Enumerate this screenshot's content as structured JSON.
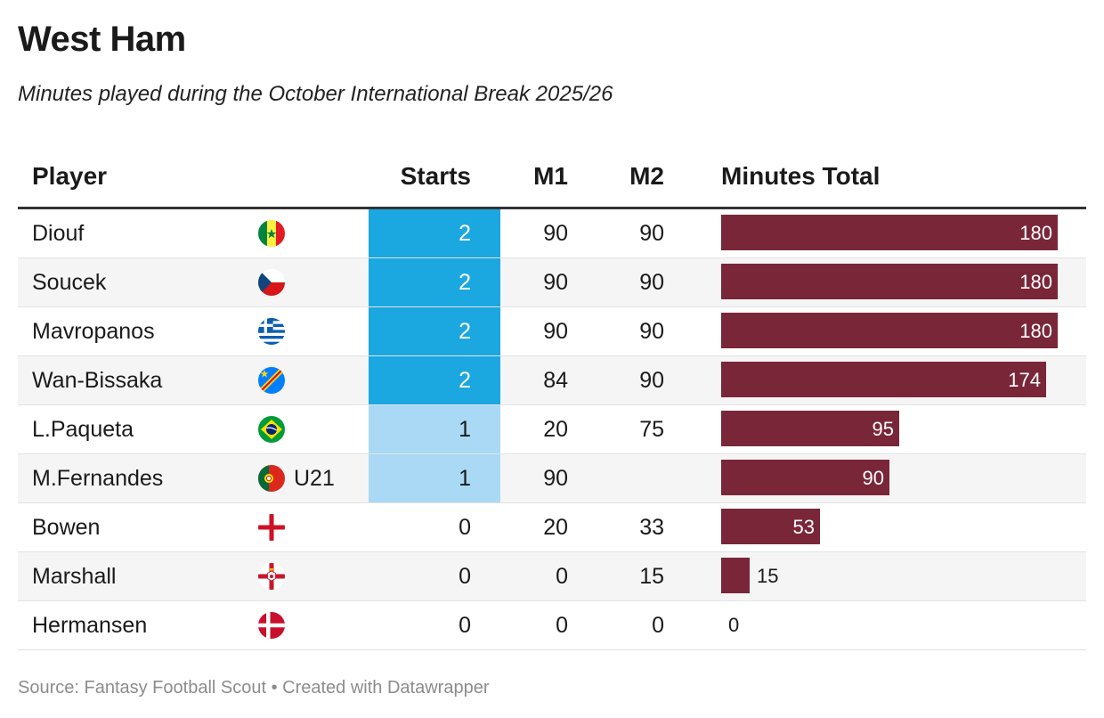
{
  "title": "West Ham",
  "subtitle": "Minutes played during the October International Break 2025/26",
  "columns": {
    "player": "Player",
    "starts": "Starts",
    "m1": "M1",
    "m2": "M2",
    "total": "Minutes Total"
  },
  "source": "Source: Fantasy Football Scout • Created with Datawrapper",
  "colors": {
    "starts_2": "#1ba7e0",
    "starts_1": "#a9d9f4",
    "bar": "#7a2639"
  },
  "chart_data": {
    "type": "table",
    "title": "West Ham",
    "subtitle": "Minutes played during the October International Break 2025/26",
    "bar_max": 180,
    "rows": [
      {
        "player": "Diouf",
        "flag": "senegal-flag-icon",
        "note": "",
        "starts": "2",
        "m1": "90",
        "m2": "90",
        "total": 180,
        "total_label": "180"
      },
      {
        "player": "Soucek",
        "flag": "czech-flag-icon",
        "note": "",
        "starts": "2",
        "m1": "90",
        "m2": "90",
        "total": 180,
        "total_label": "180"
      },
      {
        "player": "Mavropanos",
        "flag": "greece-flag-icon",
        "note": "",
        "starts": "2",
        "m1": "90",
        "m2": "90",
        "total": 180,
        "total_label": "180"
      },
      {
        "player": "Wan-Bissaka",
        "flag": "dr-congo-flag-icon",
        "note": "",
        "starts": "2",
        "m1": "84",
        "m2": "90",
        "total": 174,
        "total_label": "174"
      },
      {
        "player": "L.Paqueta",
        "flag": "brazil-flag-icon",
        "note": "",
        "starts": "1",
        "m1": "20",
        "m2": "75",
        "total": 95,
        "total_label": "95"
      },
      {
        "player": "M.Fernandes",
        "flag": "portugal-flag-icon",
        "note": "U21",
        "starts": "1",
        "m1": "90",
        "m2": "",
        "total": 90,
        "total_label": "90"
      },
      {
        "player": "Bowen",
        "flag": "england-flag-icon",
        "note": "",
        "starts": "0",
        "m1": "20",
        "m2": "33",
        "total": 53,
        "total_label": "53"
      },
      {
        "player": "Marshall",
        "flag": "northern-ireland-flag-icon",
        "note": "",
        "starts": "0",
        "m1": "0",
        "m2": "15",
        "total": 15,
        "total_label": "15"
      },
      {
        "player": "Hermansen",
        "flag": "denmark-flag-icon",
        "note": "",
        "starts": "0",
        "m1": "0",
        "m2": "0",
        "total": 0,
        "total_label": "0"
      }
    ]
  }
}
